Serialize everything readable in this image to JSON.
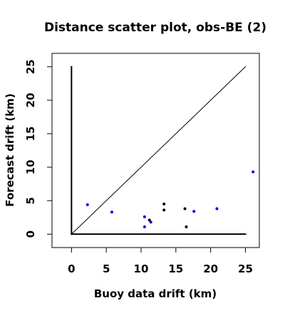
{
  "chart_data": {
    "type": "scatter",
    "title": "Distance scatter plot, obs-BE (2)",
    "xlabel": "Buoy data drift (km)",
    "ylabel": "Forecast drift (km)",
    "xlim": [
      -2.8,
      27
    ],
    "ylim": [
      -2,
      27
    ],
    "xticks": [
      0,
      5,
      10,
      15,
      20,
      25
    ],
    "yticks": [
      0,
      5,
      10,
      15,
      20,
      25
    ],
    "grid": false,
    "reference_lines": [
      {
        "kind": "identity",
        "from": [
          0,
          0
        ],
        "to": [
          25,
          25
        ],
        "color": "#000000"
      },
      {
        "kind": "x-axis",
        "from": [
          0,
          0
        ],
        "to": [
          25,
          0
        ],
        "color": "#000000"
      },
      {
        "kind": "y-axis",
        "from": [
          0,
          0
        ],
        "to": [
          0,
          25
        ],
        "color": "#000000"
      }
    ],
    "series": [
      {
        "color": "#0000ee",
        "points": [
          [
            2.3,
            4.4
          ],
          [
            5.8,
            3.3
          ],
          [
            10.5,
            2.6
          ],
          [
            10.5,
            1.1
          ],
          [
            11.4,
            1.8
          ],
          [
            17.6,
            3.4
          ],
          [
            20.9,
            3.8
          ],
          [
            26.1,
            9.3
          ]
        ]
      },
      {
        "color": "#000000",
        "points": [
          [
            11.2,
            2.1
          ],
          [
            13.3,
            4.5
          ],
          [
            13.3,
            3.6
          ],
          [
            16.3,
            3.8
          ],
          [
            16.5,
            1.1
          ]
        ]
      }
    ]
  }
}
